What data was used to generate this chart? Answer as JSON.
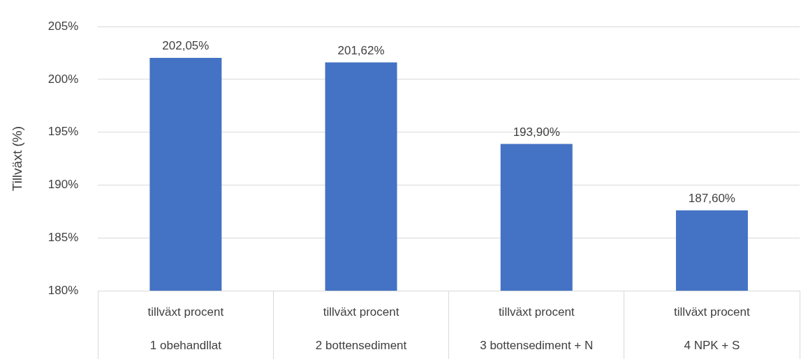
{
  "chart_data": {
    "type": "bar",
    "ylabel": "Tillväxt (%)",
    "categories": [
      "tillväxt procent\n1 obehandllat",
      "tillväxt procent\n2 bottensediment",
      "tillväxt procent\n3 bottensediment + N",
      "tillväxt procent\n4 NPK + S"
    ],
    "values": [
      202.05,
      201.62,
      193.9,
      187.6
    ],
    "value_labels": [
      "202,05%",
      "201,62%",
      "193,90%",
      "187,60%"
    ],
    "color": "#4472c4",
    "ylim": [
      180,
      205
    ],
    "yticks": [
      {
        "value": 180,
        "label": "180%"
      },
      {
        "value": 185,
        "label": "185%"
      },
      {
        "value": 190,
        "label": "190%"
      },
      {
        "value": 195,
        "label": "195%"
      },
      {
        "value": 200,
        "label": "200%"
      },
      {
        "value": 205,
        "label": "205%"
      }
    ],
    "grid": "y",
    "legend": false
  }
}
